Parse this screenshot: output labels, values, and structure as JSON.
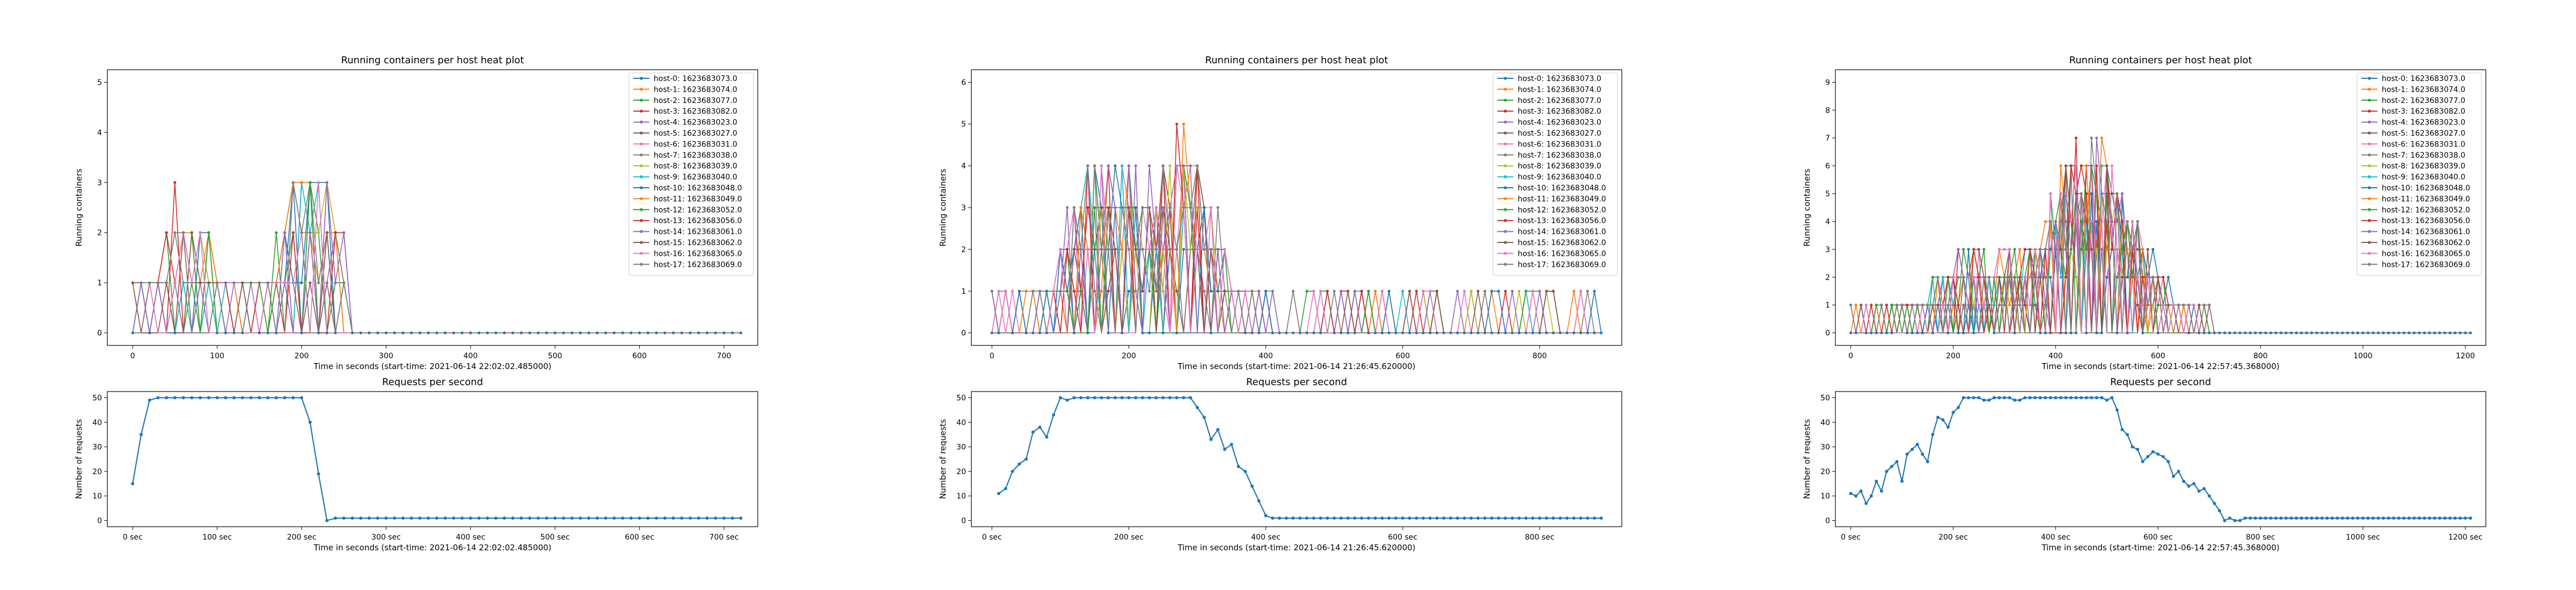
{
  "colors": [
    "#1f77b4",
    "#ff7f0e",
    "#2ca02c",
    "#d62728",
    "#9467bd",
    "#8c564b",
    "#e377c2",
    "#7f7f7f",
    "#bcbd22",
    "#17becf"
  ],
  "panels": [
    {
      "heat": {
        "title": "Running containers per host heat plot",
        "ylabel": "Running containers",
        "xlabel": "Time in seconds (start-time: 2021-06-14 22:02:02.485000)",
        "xlim": [
          -30,
          740
        ],
        "ylim": [
          -0.25,
          5.25
        ],
        "xticks": [
          "0",
          "100",
          "200",
          "300",
          "400",
          "500",
          "600",
          "700"
        ],
        "xtick_vals": [
          0,
          100,
          200,
          300,
          400,
          500,
          600,
          700
        ],
        "yticks": [
          "0",
          "1",
          "2",
          "3",
          "4",
          "5"
        ],
        "ytick_vals": [
          0,
          1,
          2,
          3,
          4,
          5
        ]
      },
      "req": {
        "title": "Requests per second",
        "ylabel": "Number of requests",
        "xlabel": "Time in seconds (start-time: 2021-06-14 22:02:02.485000)",
        "xlim": [
          -30,
          740
        ],
        "ylim": [
          -2.5,
          52.5
        ],
        "xticks": [
          "0 sec",
          "100 sec",
          "200 sec",
          "300 sec",
          "400 sec",
          "500 sec",
          "600 sec",
          "700 sec"
        ],
        "xtick_vals": [
          0,
          100,
          200,
          300,
          400,
          500,
          600,
          700
        ],
        "yticks": [
          "0",
          "10",
          "20",
          "30",
          "40",
          "50"
        ],
        "ytick_vals": [
          0,
          10,
          20,
          30,
          40,
          50
        ]
      },
      "chart_data": {
        "type": "line",
        "gen": {
          "seed": 11,
          "dt": 10,
          "busy_end": 250,
          "plot_end": 720,
          "xmax": 720,
          "peak_t": [
            60,
            210
          ],
          "peak_amp": [
            1.4,
            2.4
          ],
          "tail_density": 0,
          "tail_end": 250
        },
        "requests": {
          "x_start": 0,
          "dt": 10,
          "values": [
            15,
            35,
            49,
            50,
            50,
            50,
            50,
            50,
            50,
            50,
            50,
            50,
            50,
            50,
            50,
            50,
            50,
            50,
            50,
            50,
            50,
            40,
            19,
            0,
            1,
            1,
            1,
            1,
            1,
            1,
            1,
            1,
            1,
            1,
            1,
            1,
            1,
            1,
            1,
            1,
            1,
            1,
            1,
            1,
            1,
            1,
            1,
            1,
            1,
            1,
            1,
            1,
            1,
            1,
            1,
            1,
            1,
            1,
            1,
            1,
            1,
            1,
            1,
            1,
            1,
            1,
            1,
            1,
            1,
            1,
            1,
            1,
            1
          ]
        }
      }
    },
    {
      "heat": {
        "title": "Running containers per host heat plot",
        "ylabel": "Running containers",
        "xlabel": "Time in seconds (start-time: 2021-06-14 21:26:45.620000)",
        "xlim": [
          -30,
          920
        ],
        "ylim": [
          -0.3,
          6.3
        ],
        "xticks": [
          "0",
          "200",
          "400",
          "600",
          "800"
        ],
        "xtick_vals": [
          0,
          200,
          400,
          600,
          800
        ],
        "yticks": [
          "0",
          "1",
          "2",
          "3",
          "4",
          "5",
          "6"
        ],
        "ytick_vals": [
          0,
          1,
          2,
          3,
          4,
          5,
          6
        ]
      },
      "req": {
        "title": "Requests per second",
        "ylabel": "Number of requests",
        "xlabel": "Time in seconds (start-time: 2021-06-14 21:26:45.620000)",
        "xlim": [
          -30,
          920
        ],
        "ylim": [
          -2.5,
          52.5
        ],
        "xticks": [
          "0 sec",
          "200 sec",
          "400 sec",
          "600 sec",
          "800 sec"
        ],
        "xtick_vals": [
          0,
          200,
          400,
          600,
          800
        ],
        "yticks": [
          "0",
          "10",
          "20",
          "30",
          "40",
          "50"
        ],
        "ytick_vals": [
          0,
          10,
          20,
          30,
          40,
          50
        ]
      },
      "chart_data": {
        "type": "line",
        "gen": {
          "seed": 23,
          "dt": 10,
          "busy_end": 380,
          "plot_end": 890,
          "xmax": 890,
          "peak_t": [
            160,
            280
          ],
          "peak_amp": [
            2.6,
            3.0
          ],
          "tail_density": 0.7,
          "tail_end": 880
        },
        "requests": {
          "x_start": 10,
          "dt": 10,
          "values": [
            11,
            13,
            20,
            23,
            25,
            36,
            38,
            34,
            43,
            50,
            49,
            50,
            50,
            50,
            50,
            50,
            50,
            50,
            50,
            50,
            50,
            50,
            50,
            50,
            50,
            50,
            50,
            50,
            50,
            46,
            42,
            33,
            37,
            29,
            31,
            22,
            20,
            14,
            8,
            2,
            1,
            1,
            1,
            1,
            1,
            1,
            1,
            1,
            1,
            1,
            1,
            1,
            1,
            1,
            1,
            1,
            1,
            1,
            1,
            1,
            1,
            1,
            1,
            1,
            1,
            1,
            1,
            1,
            1,
            1,
            1,
            1,
            1,
            1,
            1,
            1,
            1,
            1,
            1,
            1,
            1,
            1,
            1,
            1,
            1,
            1,
            1,
            1,
            1
          ]
        }
      }
    },
    {
      "heat": {
        "title": "Running containers per host heat plot",
        "ylabel": "Running containers",
        "xlabel": "Time in seconds (start-time: 2021-06-14 22:57:45.368000)",
        "xlim": [
          -30,
          1240
        ],
        "ylim": [
          -0.45,
          9.45
        ],
        "xticks": [
          "0",
          "200",
          "400",
          "600",
          "800",
          "1000",
          "1200"
        ],
        "xtick_vals": [
          0,
          200,
          400,
          600,
          800,
          1000,
          1200
        ],
        "yticks": [
          "0",
          "1",
          "2",
          "3",
          "4",
          "5",
          "6",
          "7",
          "8",
          "9"
        ],
        "ytick_vals": [
          0,
          1,
          2,
          3,
          4,
          5,
          6,
          7,
          8,
          9
        ]
      },
      "req": {
        "title": "Requests per second",
        "ylabel": "Number of requests",
        "xlabel": "Time in seconds (start-time: 2021-06-14 22:57:45.368000)",
        "xlim": [
          -30,
          1240
        ],
        "ylim": [
          -2.5,
          52.5
        ],
        "xticks": [
          "0 sec",
          "200 sec",
          "400 sec",
          "600 sec",
          "800 sec",
          "1000 sec",
          "1200 sec"
        ],
        "xtick_vals": [
          0,
          200,
          400,
          600,
          800,
          1000,
          1200
        ],
        "yticks": [
          "0",
          "10",
          "20",
          "30",
          "40",
          "50"
        ],
        "ytick_vals": [
          0,
          10,
          20,
          30,
          40,
          50
        ]
      },
      "chart_data": {
        "type": "line",
        "gen": {
          "seed": 37,
          "dt": 10,
          "busy_end": 700,
          "plot_end": 1210,
          "xmax": 1210,
          "peak_t": [
            240,
            470
          ],
          "peak_amp": [
            1.6,
            4.6
          ],
          "tail_density": 0,
          "tail_end": 700
        },
        "requests": {
          "x_start": 0,
          "dt": 10,
          "values": [
            11,
            10,
            12,
            7,
            10,
            16,
            12,
            20,
            22,
            24,
            16,
            27,
            29,
            31,
            27,
            24,
            35,
            42,
            41,
            38,
            44,
            46,
            50,
            50,
            50,
            50,
            49,
            49,
            50,
            50,
            50,
            50,
            49,
            49,
            50,
            50,
            50,
            50,
            50,
            50,
            50,
            50,
            50,
            50,
            50,
            50,
            50,
            50,
            50,
            50,
            49,
            50,
            45,
            37,
            35,
            30,
            29,
            24,
            26,
            28,
            27,
            26,
            24,
            18,
            20,
            16,
            14,
            15,
            12,
            13,
            10,
            7,
            4,
            0,
            1,
            0,
            0,
            1,
            1,
            1,
            1,
            1,
            1,
            1,
            1,
            1,
            1,
            1,
            1,
            1,
            1,
            1,
            1,
            1,
            1,
            1,
            1,
            1,
            1,
            1,
            1,
            1,
            1,
            1,
            1,
            1,
            1,
            1,
            1,
            1,
            1,
            1,
            1,
            1,
            1,
            1,
            1,
            1,
            1,
            1,
            1,
            1
          ]
        }
      }
    }
  ],
  "legend": [
    "host-0: 1623683073.0",
    "host-1: 1623683074.0",
    "host-2: 1623683077.0",
    "host-3: 1623683082.0",
    "host-4: 1623683023.0",
    "host-5: 1623683027.0",
    "host-6: 1623683031.0",
    "host-7: 1623683038.0",
    "host-8: 1623683039.0",
    "host-9: 1623683040.0",
    "host-10: 1623683048.0",
    "host-11: 1623683049.0",
    "host-12: 1623683052.0",
    "host-13: 1623683056.0",
    "host-14: 1623683061.0",
    "host-15: 1623683062.0",
    "host-16: 1623683065.0",
    "host-17: 1623683069.0"
  ]
}
